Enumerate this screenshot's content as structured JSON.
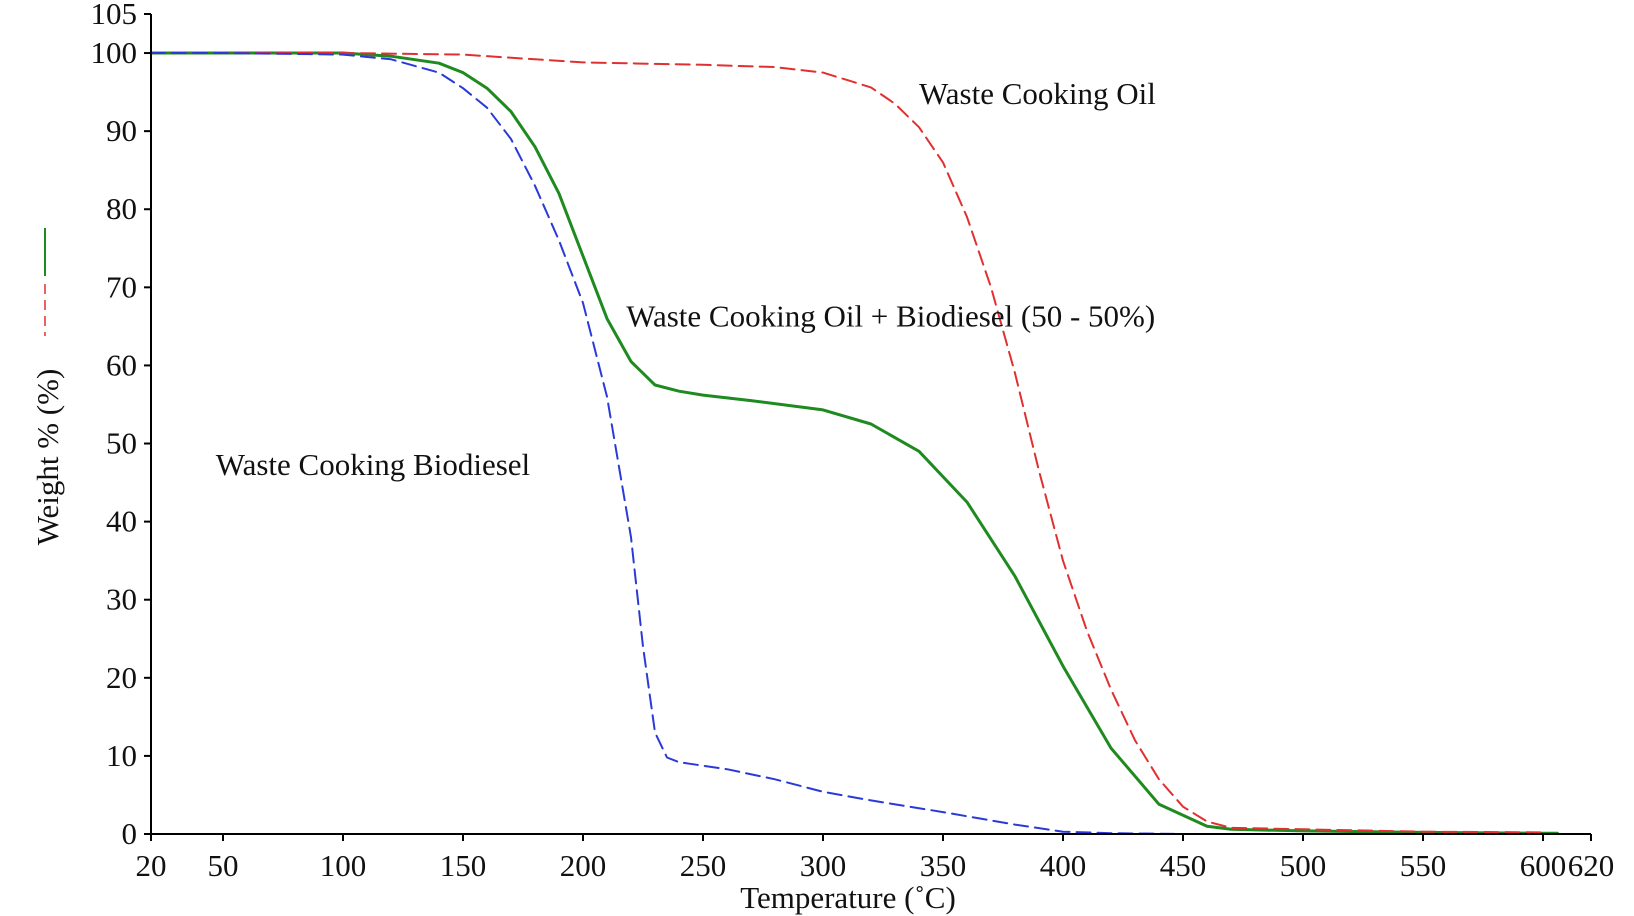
{
  "chart_data": {
    "type": "line",
    "title": "",
    "xlabel": "Temperature (˚C)",
    "ylabel": "Weight % (%)",
    "xlim": [
      20,
      620
    ],
    "ylim": [
      0,
      105
    ],
    "x_ticks": [
      20,
      50,
      100,
      150,
      200,
      250,
      300,
      350,
      400,
      450,
      500,
      550,
      600,
      620
    ],
    "y_ticks": [
      0,
      10,
      20,
      30,
      40,
      50,
      60,
      70,
      80,
      90,
      100,
      105
    ],
    "grid": false,
    "legend": "left of y-axis, rotated",
    "series": [
      {
        "color": "#1f8a1f",
        "style": "solid",
        "x": [
          20,
          50,
          100,
          120,
          140,
          150,
          160,
          170,
          180,
          190,
          200,
          210,
          220,
          230,
          240,
          250,
          270,
          300,
          320,
          340,
          360,
          380,
          400,
          420,
          440,
          460,
          470,
          500,
          550,
          600,
          606
        ],
        "values": [
          100,
          100,
          100,
          99.6,
          98.7,
          97.5,
          95.5,
          92.5,
          88,
          82,
          74,
          66,
          60.5,
          57.5,
          56.7,
          56.2,
          55.5,
          54.3,
          52.5,
          49,
          42.5,
          33,
          21.5,
          11,
          3.8,
          1.0,
          0.6,
          0.4,
          0.2,
          0.1,
          0.1
        ]
      },
      {
        "color": "#e03030",
        "style": "dashed",
        "x": [
          20,
          50,
          100,
          150,
          180,
          200,
          250,
          280,
          300,
          320,
          330,
          340,
          350,
          360,
          370,
          380,
          390,
          400,
          410,
          420,
          430,
          440,
          450,
          460,
          470,
          500,
          550,
          600
        ],
        "values": [
          100,
          100,
          100,
          99.8,
          99.2,
          98.8,
          98.5,
          98.2,
          97.5,
          95.6,
          93.5,
          90.5,
          86,
          79,
          70,
          59,
          46.5,
          35,
          26,
          18.5,
          12,
          7,
          3.5,
          1.6,
          0.8,
          0.6,
          0.3,
          0.2
        ]
      },
      {
        "color": "#2a3ad8",
        "style": "dashed",
        "x": [
          20,
          50,
          100,
          120,
          140,
          150,
          160,
          170,
          180,
          190,
          200,
          210,
          220,
          225,
          230,
          235,
          240,
          260,
          280,
          300,
          320,
          350,
          380,
          400,
          420,
          450
        ],
        "values": [
          100,
          100,
          99.8,
          99.2,
          97.5,
          95.5,
          93,
          89,
          83,
          76,
          68,
          56,
          38,
          24,
          13,
          9.8,
          9.2,
          8.3,
          7,
          5.4,
          4.3,
          2.8,
          1.2,
          0.3,
          0.1,
          0
        ]
      }
    ],
    "annotations": [
      {
        "text": "Waste Cooking Oil",
        "x": 340,
        "y": 93.5
      },
      {
        "text": "Waste Cooking Oil +  Biodiesel (50 - 50%)",
        "x": 218,
        "y": 65
      },
      {
        "text": "Waste Cooking Biodiesel",
        "x": 47,
        "y": 46
      }
    ]
  }
}
